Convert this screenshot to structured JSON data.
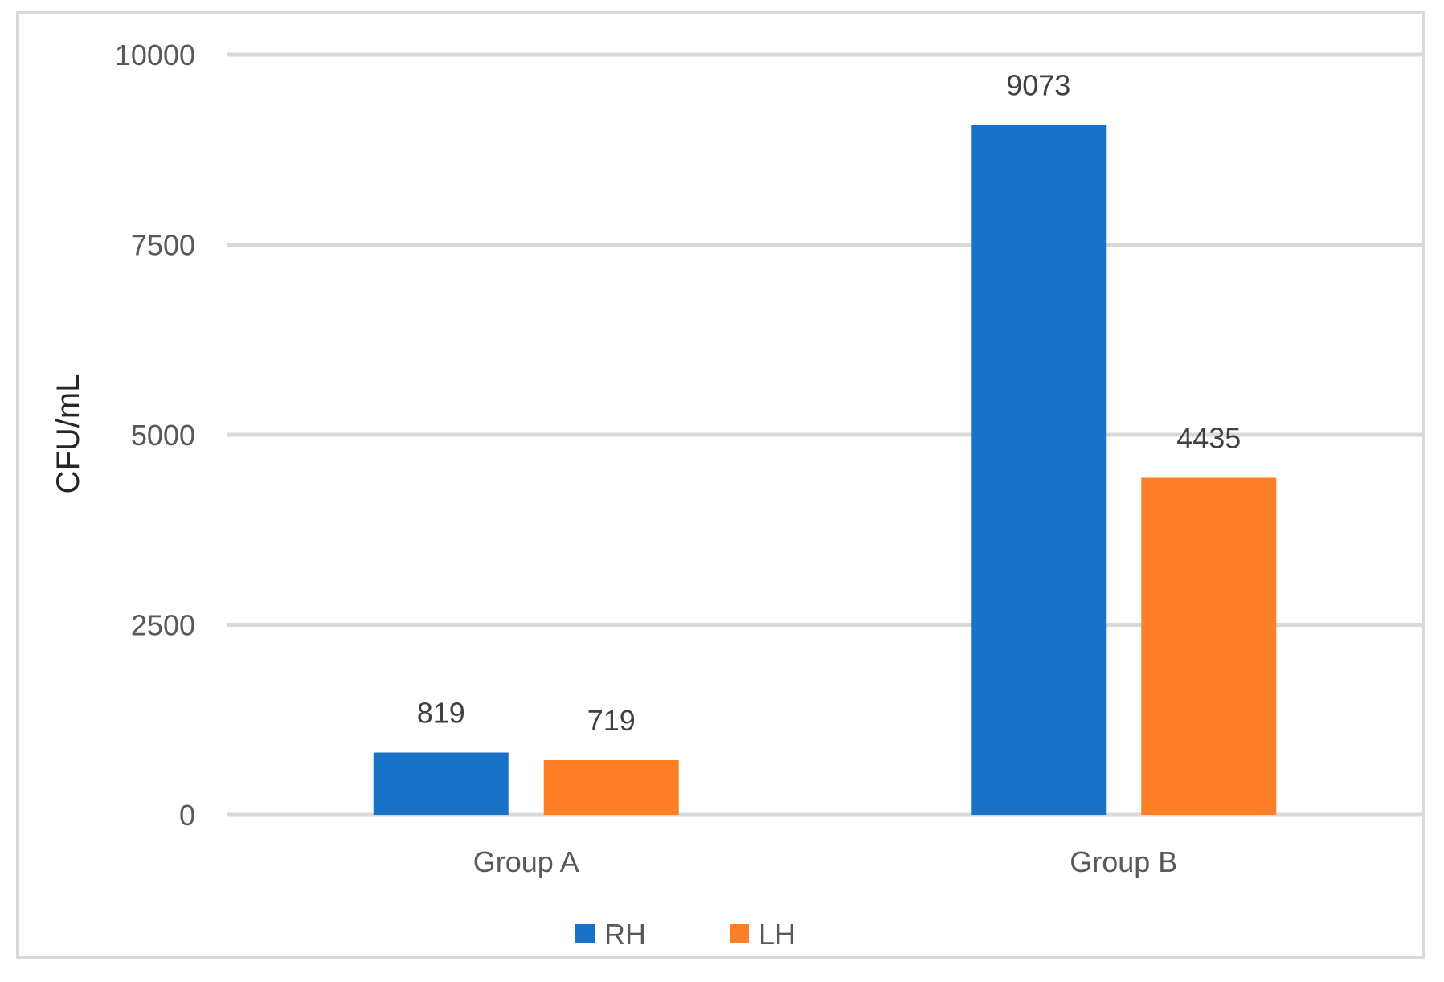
{
  "chart_data": {
    "type": "bar",
    "categories": [
      "Group A",
      "Group B"
    ],
    "series": [
      {
        "name": "RH",
        "values": [
          819,
          9073
        ],
        "color": "#1873C8"
      },
      {
        "name": "LH",
        "values": [
          719,
          4435
        ],
        "color": "#FF7F27"
      }
    ],
    "data_labels": [
      [
        "819",
        "9073"
      ],
      [
        "719",
        "4435"
      ]
    ],
    "title": "",
    "xlabel": "",
    "ylabel": "CFU/mL",
    "ylim": [
      0,
      10000
    ],
    "yticks": [
      0,
      2500,
      5000,
      7500,
      10000
    ],
    "ytick_labels": [
      "0",
      "2500",
      "5000",
      "7500",
      "10000"
    ],
    "grid": true,
    "legend_position": "bottom",
    "colors": {
      "gridline": "#D9D9D9",
      "text": "#595959",
      "frame": "#D9D9D9"
    }
  }
}
